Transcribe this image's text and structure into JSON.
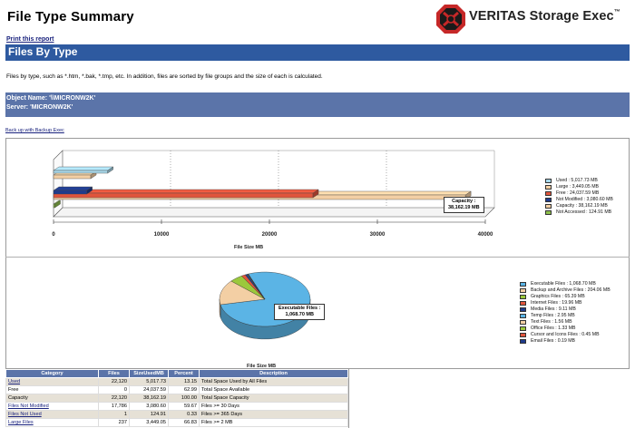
{
  "header": {
    "title": "File Type Summary",
    "brand": "VERITAS Storage Exec",
    "brand_mark": "™"
  },
  "links": {
    "print": "Print this report",
    "backup": "Back up with Backup Exec"
  },
  "section": {
    "heading": "Files By Type",
    "description": "Files by type, such as *.htm, *.bak, *.tmp, etc. In addition, files are sorted by file groups and the size of each is calculated."
  },
  "info": {
    "object_name": "Object Name: '\\\\MICRONW2K'",
    "server": "Server: 'MICRONW2K'"
  },
  "chart_data": [
    {
      "type": "bar",
      "orientation": "horizontal",
      "xlabel": "File Size MB",
      "xlim": [
        0,
        40000
      ],
      "xticks": [
        "0",
        "10000",
        "20000",
        "30000",
        "40000"
      ],
      "series": [
        {
          "name": "Used",
          "value": 5017.73,
          "color": "#a8d8ea"
        },
        {
          "name": "Large",
          "value": 3449.05,
          "color": "#f3cfa4"
        },
        {
          "name": "Free",
          "value": 24037.59,
          "color": "#e0553c"
        },
        {
          "name": "Not Modified",
          "value": 3080.6,
          "color": "#1f3b8c"
        },
        {
          "name": "Capacity",
          "value": 38162.19,
          "color": "#f3cfa4"
        },
        {
          "name": "Not Accessed",
          "value": 124.91,
          "color": "#8fc14b"
        }
      ],
      "legend_labels": [
        "Used : 5,017.73  MB",
        "Large : 3,449.05  MB",
        "Free : 24,037.59  MB",
        "Not Modified : 3,080.60  MB",
        "Capacity : 38,162.19  MB",
        "Not Accessed : 124.91  MB"
      ],
      "callout": [
        "Capacity :",
        "38,162.19  MB"
      ],
      "legend_position": "right"
    },
    {
      "type": "pie",
      "xlabel": "File Size MB",
      "slices": [
        {
          "name": "Executable Files",
          "value": 1068.7,
          "color": "#5bb4e5"
        },
        {
          "name": "Backup and Archive Files",
          "value": 204.06,
          "color": "#f3cfa4"
        },
        {
          "name": "Graphics Files",
          "value": 65.39,
          "color": "#9bc83c"
        },
        {
          "name": "Internet Files",
          "value": 19.96,
          "color": "#e0553c"
        },
        {
          "name": "Media Files",
          "value": 9.11,
          "color": "#1f3b8c"
        },
        {
          "name": "Temp Files",
          "value": 2.95,
          "color": "#5bb4e5"
        },
        {
          "name": "Text Files",
          "value": 1.56,
          "color": "#f3cfa4"
        },
        {
          "name": "Office Files",
          "value": 1.33,
          "color": "#9bc83c"
        },
        {
          "name": "Cursor and Icons Files",
          "value": 0.45,
          "color": "#e0553c"
        },
        {
          "name": "Email Files",
          "value": 0.19,
          "color": "#1f3b8c"
        }
      ],
      "legend_labels": [
        "Executable Files : 1,068.70  MB",
        "Backup and Archive Files : 204.06  MB",
        "Graphics Files : 65.39  MB",
        "Internet Files : 19.96  MB",
        "Media Files : 9.11  MB",
        "Temp Files : 2.95  MB",
        "Text Files : 1.56  MB",
        "Office Files : 1.33  MB",
        "Cursor and Icons Files : 0.45  MB",
        "Email Files : 0.19  MB"
      ],
      "callout": [
        "Executable Files :",
        "1,068.70  MB"
      ],
      "legend_position": "right"
    }
  ],
  "table": {
    "headers": [
      "Category",
      "Files",
      "SizeUsedMB",
      "Percent",
      "Description"
    ],
    "rows": [
      {
        "category": "Used",
        "link": true,
        "files": "22,120",
        "size": "5,017.73",
        "percent": "13.15",
        "description": "Total Space Used by All Files"
      },
      {
        "category": "Free",
        "link": false,
        "files": "0",
        "size": "24,037.59",
        "percent": "62.99",
        "description": "Total Space Available"
      },
      {
        "category": "Capacity",
        "link": false,
        "files": "22,120",
        "size": "38,162.19",
        "percent": "100.00",
        "description": "Total Space Capacity"
      },
      {
        "category": "Files Not Modified",
        "link": true,
        "files": "17,786",
        "size": "3,080.60",
        "percent": "59.67",
        "description": "Files >= 30 Days"
      },
      {
        "category": "Files Not Used",
        "link": true,
        "files": "1",
        "size": "124.91",
        "percent": "0.33",
        "description": "Files >= 365 Days"
      },
      {
        "category": "Large Files",
        "link": true,
        "files": "237",
        "size": "3,449.05",
        "percent": "66.83",
        "description": "Files >= 2 MB"
      }
    ]
  }
}
